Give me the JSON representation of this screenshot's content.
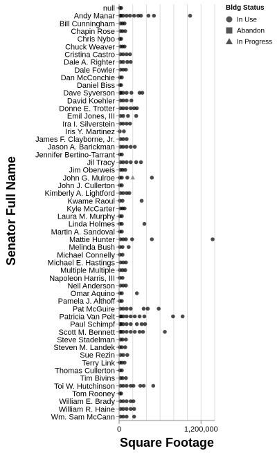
{
  "chart_data": {
    "type": "scatter",
    "x_title": "Square Footage",
    "y_title": "Senator Full Name",
    "x_ticks": [
      0,
      1200000
    ],
    "x_tick_labels": [
      "0",
      "1,200,000"
    ],
    "x_domain": [
      0,
      1400000
    ],
    "grid": true,
    "legend": {
      "title": "Bldg Status",
      "position": "top-right",
      "entries": [
        {
          "label": "In Use",
          "shape": "circle"
        },
        {
          "label": "Abandon",
          "shape": "square"
        },
        {
          "label": "In Progress",
          "shape": "triangle"
        }
      ]
    },
    "point_color": "#000000",
    "categories": [
      "null",
      "Andy Manar",
      "Bill Cunningham",
      "Chapin Rose",
      "Chris Nybo",
      "Chuck Weaver",
      "Cristina Castro",
      "Dale A. Righter",
      "Dale Fowler",
      "Dan McConchie",
      "Daniel Biss",
      "Dave Syverson",
      "David Koehler",
      "Donne E. Trotter",
      "Emil Jones, III",
      "Ira I. Silverstein",
      "Iris Y. Martinez",
      "James F. Clayborne, Jr.",
      "Jason A. Barickman",
      "Jennifer Bertino-Tarrant",
      "Jil Tracy",
      "Jim Oberweis",
      "John G. Mulroe",
      "John J. Cullerton",
      "Kimberly A. Lightford",
      "Kwame Raoul",
      "Kyle McCarter",
      "Laura M. Murphy",
      "Linda Holmes",
      "Martin A. Sandoval",
      "Mattie Hunter",
      "Melinda Bush",
      "Michael Connelly",
      "Michael E. Hastings",
      "Multiple Multiple",
      "Napoleon Harris, III",
      "Neil Anderson",
      "Omar Aquino",
      "Pamela J. Althoff",
      "Pat McGuire",
      "Patricia Van Pelt",
      "Paul Schimpf",
      "Scott M. Bennett",
      "Steve Stadelman",
      "Steven M. Landek",
      "Sue Rezin",
      "Terry Link",
      "Thomas Cullerton",
      "Tim Bivins",
      "Toi W. Hutchinson",
      "Tom Rooney",
      "William E. Brady",
      "William R. Haine",
      "Wm. Sam McCann"
    ],
    "series": [
      {
        "status": "In Use",
        "points": [
          [
            "null",
            10000
          ],
          [
            "null",
            30000
          ],
          [
            "Andy Manar",
            20000
          ],
          [
            "Andy Manar",
            60000
          ],
          [
            "Andy Manar",
            110000
          ],
          [
            "Andy Manar",
            160000
          ],
          [
            "Andy Manar",
            220000
          ],
          [
            "Andy Manar",
            280000
          ],
          [
            "Andy Manar",
            320000
          ],
          [
            "Andy Manar",
            430000
          ],
          [
            "Andy Manar",
            510000
          ],
          [
            "Andy Manar",
            1040000
          ],
          [
            "Bill Cunningham",
            20000
          ],
          [
            "Bill Cunningham",
            50000
          ],
          [
            "Bill Cunningham",
            80000
          ],
          [
            "Chapin Rose",
            20000
          ],
          [
            "Chapin Rose",
            50000
          ],
          [
            "Chapin Rose",
            90000
          ],
          [
            "Chris Nybo",
            10000
          ],
          [
            "Chris Nybo",
            30000
          ],
          [
            "Chuck Weaver",
            20000
          ],
          [
            "Chuck Weaver",
            50000
          ],
          [
            "Chuck Weaver",
            80000
          ],
          [
            "Cristina Castro",
            20000
          ],
          [
            "Cristina Castro",
            60000
          ],
          [
            "Cristina Castro",
            110000
          ],
          [
            "Cristina Castro",
            160000
          ],
          [
            "Dale A. Righter",
            20000
          ],
          [
            "Dale A. Righter",
            60000
          ],
          [
            "Dale A. Righter",
            120000
          ],
          [
            "Dale A. Righter",
            170000
          ],
          [
            "Dale Fowler",
            20000
          ],
          [
            "Dale Fowler",
            60000
          ],
          [
            "Dale Fowler",
            100000
          ],
          [
            "Dan McConchie",
            10000
          ],
          [
            "Dan McConchie",
            40000
          ],
          [
            "Daniel Biss",
            10000
          ],
          [
            "Daniel Biss",
            30000
          ],
          [
            "Dave Syverson",
            20000
          ],
          [
            "Dave Syverson",
            60000
          ],
          [
            "Dave Syverson",
            110000
          ],
          [
            "Dave Syverson",
            180000
          ],
          [
            "Dave Syverson",
            300000
          ],
          [
            "Dave Syverson",
            340000
          ],
          [
            "David Koehler",
            20000
          ],
          [
            "David Koehler",
            60000
          ],
          [
            "David Koehler",
            110000
          ],
          [
            "David Koehler",
            180000
          ],
          [
            "Donne E. Trotter",
            20000
          ],
          [
            "Donne E. Trotter",
            60000
          ],
          [
            "Donne E. Trotter",
            110000
          ],
          [
            "Donne E. Trotter",
            170000
          ],
          [
            "Donne E. Trotter",
            220000
          ],
          [
            "Donne E. Trotter",
            260000
          ],
          [
            "Emil Jones, III",
            20000
          ],
          [
            "Emil Jones, III",
            60000
          ],
          [
            "Emil Jones, III",
            130000
          ],
          [
            "Emil Jones, III",
            250000
          ],
          [
            "Ira I. Silverstein",
            20000
          ],
          [
            "Ira I. Silverstein",
            60000
          ],
          [
            "Ira I. Silverstein",
            110000
          ],
          [
            "Ira I. Silverstein",
            160000
          ],
          [
            "Iris Y. Martinez",
            10000
          ],
          [
            "Iris Y. Martinez",
            70000
          ],
          [
            "James F. Clayborne, Jr.",
            20000
          ],
          [
            "James F. Clayborne, Jr.",
            60000
          ],
          [
            "James F. Clayborne, Jr.",
            110000
          ],
          [
            "Jason A. Barickman",
            20000
          ],
          [
            "Jason A. Barickman",
            60000
          ],
          [
            "Jason A. Barickman",
            110000
          ],
          [
            "Jason A. Barickman",
            170000
          ],
          [
            "Jason A. Barickman",
            230000
          ],
          [
            "Jennifer Bertino-Tarrant",
            10000
          ],
          [
            "Jennifer Bertino-Tarrant",
            40000
          ],
          [
            "Jil Tracy",
            20000
          ],
          [
            "Jil Tracy",
            60000
          ],
          [
            "Jil Tracy",
            110000
          ],
          [
            "Jil Tracy",
            170000
          ],
          [
            "Jil Tracy",
            250000
          ],
          [
            "Jil Tracy",
            320000
          ],
          [
            "Jim Oberweis",
            20000
          ],
          [
            "Jim Oberweis",
            50000
          ],
          [
            "Jim Oberweis",
            90000
          ],
          [
            "John G. Mulroe",
            10000
          ],
          [
            "John G. Mulroe",
            40000
          ],
          [
            "John G. Mulroe",
            120000
          ],
          [
            "John G. Mulroe",
            480000
          ],
          [
            "John J. Cullerton",
            10000
          ],
          [
            "John J. Cullerton",
            40000
          ],
          [
            "Kimberly A. Lightford",
            20000
          ],
          [
            "Kimberly A. Lightford",
            60000
          ],
          [
            "Kimberly A. Lightford",
            110000
          ],
          [
            "Kimberly A. Lightford",
            150000
          ],
          [
            "Kwame Raoul",
            10000
          ],
          [
            "Kwame Raoul",
            50000
          ],
          [
            "Kwame Raoul",
            330000
          ],
          [
            "Kyle McCarter",
            20000
          ],
          [
            "Kyle McCarter",
            50000
          ],
          [
            "Kyle McCarter",
            80000
          ],
          [
            "Laura M. Murphy",
            10000
          ],
          [
            "Laura M. Murphy",
            40000
          ],
          [
            "Linda Holmes",
            10000
          ],
          [
            "Linda Holmes",
            40000
          ],
          [
            "Linda Holmes",
            370000
          ],
          [
            "Martin A. Sandoval",
            10000
          ],
          [
            "Martin A. Sandoval",
            40000
          ],
          [
            "Mattie Hunter",
            20000
          ],
          [
            "Mattie Hunter",
            60000
          ],
          [
            "Mattie Hunter",
            100000
          ],
          [
            "Mattie Hunter",
            190000
          ],
          [
            "Mattie Hunter",
            480000
          ],
          [
            "Mattie Hunter",
            1370000
          ],
          [
            "Melinda Bush",
            10000
          ],
          [
            "Melinda Bush",
            50000
          ],
          [
            "Melinda Bush",
            140000
          ],
          [
            "Michael Connelly",
            10000
          ],
          [
            "Michael Connelly",
            50000
          ],
          [
            "Michael E. Hastings",
            20000
          ],
          [
            "Michael E. Hastings",
            60000
          ],
          [
            "Michael E. Hastings",
            100000
          ],
          [
            "Multiple Multiple",
            10000
          ],
          [
            "Multiple Multiple",
            50000
          ],
          [
            "Multiple Multiple",
            90000
          ],
          [
            "Napoleon Harris, III",
            10000
          ],
          [
            "Napoleon Harris, III",
            50000
          ],
          [
            "Neil Anderson",
            20000
          ],
          [
            "Neil Anderson",
            60000
          ],
          [
            "Neil Anderson",
            100000
          ],
          [
            "Omar Aquino",
            10000
          ],
          [
            "Omar Aquino",
            40000
          ],
          [
            "Omar Aquino",
            260000
          ],
          [
            "Pamela J. Althoff",
            10000
          ],
          [
            "Pamela J. Althoff",
            40000
          ],
          [
            "Pat McGuire",
            20000
          ],
          [
            "Pat McGuire",
            60000
          ],
          [
            "Pat McGuire",
            110000
          ],
          [
            "Pat McGuire",
            170000
          ],
          [
            "Pat McGuire",
            360000
          ],
          [
            "Pat McGuire",
            420000
          ],
          [
            "Pat McGuire",
            580000
          ],
          [
            "Patricia Van Pelt",
            20000
          ],
          [
            "Patricia Van Pelt",
            60000
          ],
          [
            "Patricia Van Pelt",
            110000
          ],
          [
            "Patricia Van Pelt",
            170000
          ],
          [
            "Patricia Van Pelt",
            230000
          ],
          [
            "Patricia Van Pelt",
            300000
          ],
          [
            "Patricia Van Pelt",
            370000
          ],
          [
            "Patricia Van Pelt",
            790000
          ],
          [
            "Patricia Van Pelt",
            930000
          ],
          [
            "Paul Schimpf",
            20000
          ],
          [
            "Paul Schimpf",
            60000
          ],
          [
            "Paul Schimpf",
            110000
          ],
          [
            "Paul Schimpf",
            170000
          ],
          [
            "Paul Schimpf",
            260000
          ],
          [
            "Paul Schimpf",
            330000
          ],
          [
            "Paul Schimpf",
            380000
          ],
          [
            "Scott M. Bennett",
            20000
          ],
          [
            "Scott M. Bennett",
            60000
          ],
          [
            "Scott M. Bennett",
            110000
          ],
          [
            "Scott M. Bennett",
            170000
          ],
          [
            "Scott M. Bennett",
            230000
          ],
          [
            "Scott M. Bennett",
            300000
          ],
          [
            "Scott M. Bennett",
            350000
          ],
          [
            "Scott M. Bennett",
            670000
          ],
          [
            "Steve Stadelman",
            20000
          ],
          [
            "Steve Stadelman",
            50000
          ],
          [
            "Steve Stadelman",
            100000
          ],
          [
            "Steven M. Landek",
            10000
          ],
          [
            "Steven M. Landek",
            40000
          ],
          [
            "Steven M. Landek",
            90000
          ],
          [
            "Sue Rezin",
            20000
          ],
          [
            "Sue Rezin",
            60000
          ],
          [
            "Sue Rezin",
            120000
          ],
          [
            "Terry Link",
            10000
          ],
          [
            "Terry Link",
            40000
          ],
          [
            "Terry Link",
            80000
          ],
          [
            "Thomas Cullerton",
            10000
          ],
          [
            "Thomas Cullerton",
            40000
          ],
          [
            "Tim Bivins",
            20000
          ],
          [
            "Tim Bivins",
            50000
          ],
          [
            "Tim Bivins",
            100000
          ],
          [
            "Toi W. Hutchinson",
            20000
          ],
          [
            "Toi W. Hutchinson",
            60000
          ],
          [
            "Toi W. Hutchinson",
            110000
          ],
          [
            "Toi W. Hutchinson",
            170000
          ],
          [
            "Toi W. Hutchinson",
            210000
          ],
          [
            "Toi W. Hutchinson",
            310000
          ],
          [
            "Toi W. Hutchinson",
            360000
          ],
          [
            "Toi W. Hutchinson",
            500000
          ],
          [
            "Tom Rooney",
            10000
          ],
          [
            "Tom Rooney",
            30000
          ],
          [
            "William E. Brady",
            20000
          ],
          [
            "William E. Brady",
            60000
          ],
          [
            "William E. Brady",
            110000
          ],
          [
            "William E. Brady",
            170000
          ],
          [
            "William E. Brady",
            210000
          ],
          [
            "William R. Haine",
            20000
          ],
          [
            "William R. Haine",
            60000
          ],
          [
            "William R. Haine",
            110000
          ],
          [
            "William R. Haine",
            170000
          ],
          [
            "William R. Haine",
            220000
          ],
          [
            "Wm. Sam McCann",
            20000
          ],
          [
            "Wm. Sam McCann",
            60000
          ],
          [
            "Wm. Sam McCann",
            110000
          ],
          [
            "Wm. Sam McCann",
            220000
          ]
        ]
      },
      {
        "status": "Abandon",
        "points": [
          [
            "Andy Manar",
            20000
          ],
          [
            "Dave Syverson",
            20000
          ],
          [
            "Patricia Van Pelt",
            20000
          ],
          [
            "Scott M. Bennett",
            20000
          ],
          [
            "Paul Schimpf",
            20000
          ]
        ]
      },
      {
        "status": "In Progress",
        "points": [
          [
            "John G. Mulroe",
            200000
          ]
        ]
      }
    ]
  }
}
